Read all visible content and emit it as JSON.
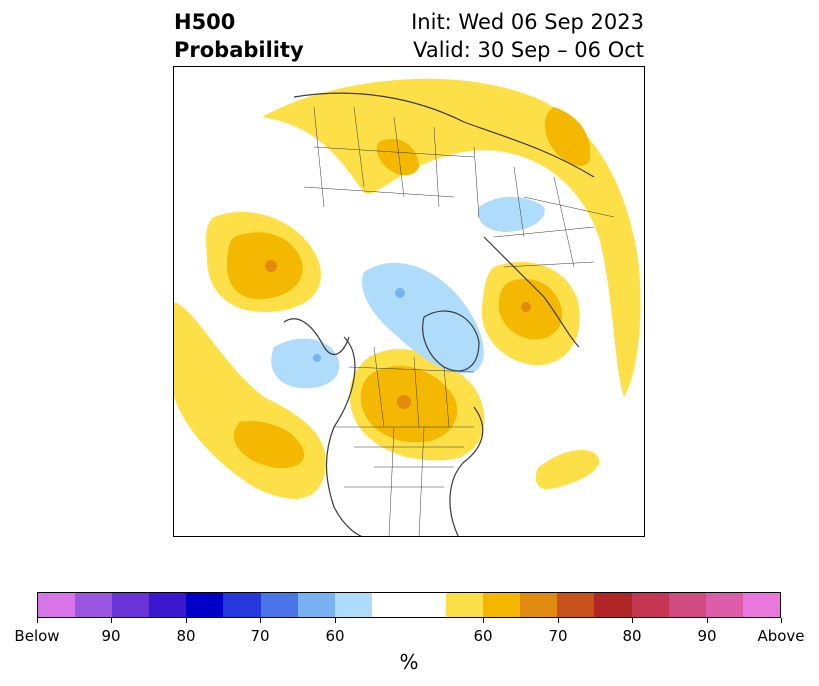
{
  "title": {
    "line1": "H500",
    "line2": "Probability",
    "init": "Init: Wed 06 Sep 2023",
    "valid": "Valid: 30 Sep – 06 Oct"
  },
  "map": {
    "projection": "north-polar-stereographic",
    "coastline_color": "#3a3a3a"
  },
  "colorbar": {
    "unit": "%",
    "colors": [
      "#d674e8",
      "#9a56e0",
      "#6a34d8",
      "#3b18d0",
      "#0000c8",
      "#2438dc",
      "#4a74e8",
      "#78b2f2",
      "#aedcfa",
      "#ffffff",
      "#ffffff",
      "#fde047",
      "#f4b800",
      "#e08a10",
      "#c8521c",
      "#b02626",
      "#c43652",
      "#d04c80",
      "#dc5ea8",
      "#e878dc"
    ],
    "tick_labels": [
      "Below",
      "90",
      "80",
      "70",
      "60",
      "60",
      "70",
      "80",
      "90",
      "Above"
    ]
  },
  "anomalies": {
    "above_color_60": "#fde047",
    "above_color_65": "#f4b800",
    "above_color_70": "#e08a10",
    "below_color_60": "#aedcfa",
    "below_color_65": "#78b2f2"
  }
}
